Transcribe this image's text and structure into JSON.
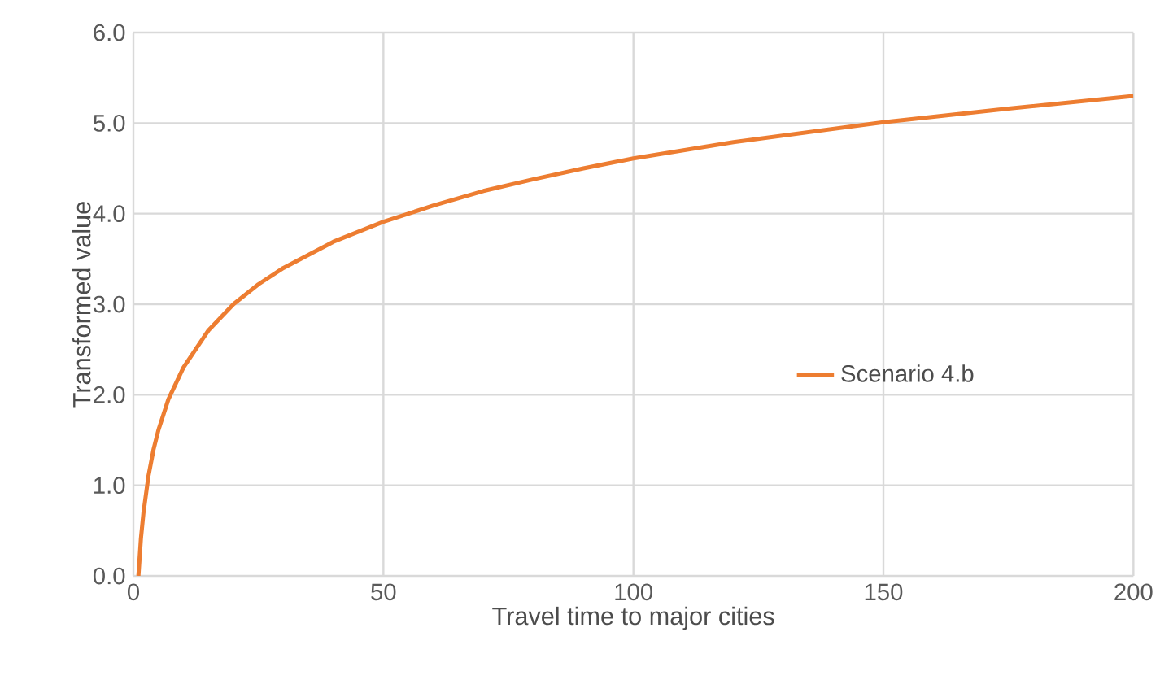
{
  "chart_data": {
    "type": "line",
    "xlabel": "Travel time to major cities",
    "ylabel": "Transformed value",
    "series": [
      {
        "name": "Scenario 4.b",
        "color": "#ed7d31",
        "x": [
          1,
          1.5,
          2,
          3,
          4,
          5,
          7,
          10,
          15,
          20,
          25,
          30,
          40,
          50,
          60,
          70,
          80,
          90,
          100,
          120,
          150,
          175,
          200
        ],
        "values": [
          0,
          0.41,
          0.69,
          1.1,
          1.39,
          1.61,
          1.95,
          2.3,
          2.71,
          3.0,
          3.22,
          3.4,
          3.69,
          3.91,
          4.09,
          4.25,
          4.38,
          4.5,
          4.61,
          4.79,
          5.01,
          5.16,
          5.3
        ]
      }
    ],
    "xlim": [
      0,
      200
    ],
    "xticks": [
      0,
      50,
      100,
      150,
      200
    ],
    "ylim": [
      0,
      6
    ],
    "yticks": [
      {
        "value": 0,
        "label": "0.0"
      },
      {
        "value": 1,
        "label": "1.0"
      },
      {
        "value": 2,
        "label": "2.0"
      },
      {
        "value": 3,
        "label": "3.0"
      },
      {
        "value": 4,
        "label": "4.0"
      },
      {
        "value": 5,
        "label": "5.0"
      },
      {
        "value": 6,
        "label": "6.0"
      }
    ],
    "grid": true,
    "legend": "right",
    "marker": "none",
    "line_style": "solid"
  }
}
